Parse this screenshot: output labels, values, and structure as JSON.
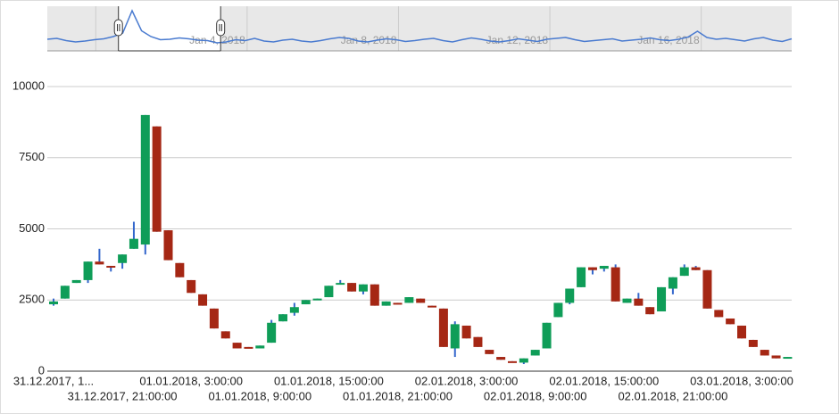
{
  "chart_data": {
    "type": "candlestick",
    "categories": [
      "31.12.2017, 1...",
      null,
      null,
      null,
      null,
      null,
      "31.12.2017, 21:00:00",
      null,
      null,
      null,
      null,
      null,
      "01.01.2018, 3:00:00",
      null,
      null,
      null,
      null,
      null,
      "01.01.2018, 9:00:00",
      null,
      null,
      null,
      null,
      null,
      "01.01.2018, 15:00:00",
      null,
      null,
      null,
      null,
      null,
      "01.01.2018, 21:00:00",
      null,
      null,
      null,
      null,
      null,
      "02.01.2018, 3:00:00",
      null,
      null,
      null,
      null,
      null,
      "02.01.2018, 9:00:00",
      null,
      null,
      null,
      null,
      null,
      "02.01.2018, 15:00:00",
      null,
      null,
      null,
      null,
      null,
      "02.01.2018, 21:00:00",
      null,
      null,
      null,
      null,
      null,
      "03.01.2018, 3:00:00",
      null,
      null,
      null,
      null
    ],
    "open": [
      2350,
      2550,
      3100,
      3200,
      3850,
      3700,
      3800,
      4300,
      4450,
      8600,
      4950,
      3800,
      3200,
      2700,
      2200,
      1400,
      1000,
      850,
      800,
      1000,
      1750,
      2050,
      2350,
      2500,
      2600,
      3050,
      3100,
      2800,
      3050,
      2300,
      2400,
      2400,
      2550,
      2300,
      2200,
      800,
      1600,
      1200,
      750,
      500,
      350,
      300,
      550,
      800,
      1900,
      2400,
      2950,
      3650,
      3600,
      3650,
      2400,
      2550,
      2250,
      2100,
      2900,
      3350,
      3650,
      3550,
      2150,
      1850,
      1600,
      1100,
      750,
      550,
      450
    ],
    "high": [
      2550,
      3000,
      3200,
      3850,
      4300,
      3700,
      4100,
      5250,
      9000,
      8600,
      4950,
      3800,
      3200,
      2700,
      2200,
      1400,
      1000,
      850,
      900,
      1800,
      2000,
      2400,
      2500,
      2550,
      3000,
      3200,
      3100,
      3050,
      3050,
      2450,
      2400,
      2600,
      2550,
      2300,
      2200,
      1750,
      1600,
      1200,
      750,
      500,
      350,
      450,
      750,
      1700,
      2400,
      2900,
      3650,
      3650,
      3700,
      3750,
      2550,
      2750,
      2250,
      2950,
      3300,
      3750,
      3700,
      3550,
      2150,
      1850,
      1600,
      1100,
      750,
      550,
      500
    ],
    "low": [
      2300,
      2550,
      3100,
      3100,
      3750,
      3500,
      3600,
      4300,
      4100,
      4900,
      3900,
      3300,
      2750,
      2300,
      1500,
      1150,
      800,
      800,
      800,
      1000,
      1750,
      1950,
      2350,
      2500,
      2600,
      3050,
      2800,
      2700,
      2300,
      2300,
      2350,
      2400,
      2400,
      2250,
      850,
      500,
      1150,
      850,
      600,
      400,
      300,
      250,
      550,
      800,
      1900,
      2350,
      2950,
      3400,
      3500,
      2450,
      2400,
      2300,
      2000,
      2100,
      2700,
      3350,
      3550,
      2200,
      1900,
      1650,
      1150,
      850,
      550,
      450,
      450
    ],
    "close": [
      2450,
      3000,
      3200,
      3850,
      3750,
      3650,
      4100,
      4650,
      9000,
      4900,
      3900,
      3300,
      2750,
      2300,
      1500,
      1150,
      800,
      800,
      900,
      1700,
      2000,
      2250,
      2500,
      2550,
      3000,
      3100,
      2800,
      3050,
      2300,
      2450,
      2350,
      2600,
      2400,
      2250,
      850,
      1650,
      1150,
      850,
      600,
      400,
      300,
      450,
      750,
      1700,
      2400,
      2900,
      3650,
      3550,
      3700,
      2450,
      2550,
      2300,
      2000,
      2950,
      3300,
      3650,
      3550,
      2200,
      1900,
      1650,
      1150,
      850,
      550,
      450,
      500
    ],
    "rising_color": "#0f9d58",
    "falling_color": "#a52714",
    "wick_color": "#3366cc",
    "ylim": [
      0,
      10000
    ],
    "yticks": [
      0,
      2500,
      5000,
      7500,
      10000
    ],
    "grid": true,
    "navigator": {
      "values": [
        2600,
        2800,
        2300,
        2000,
        2200,
        2500,
        2700,
        3200,
        4000,
        9000,
        4500,
        3200,
        2500,
        2600,
        2900,
        2700,
        2400,
        2300,
        1800,
        2000,
        2500,
        2300,
        2800,
        2200,
        2000,
        2400,
        2600,
        2200,
        2000,
        2300,
        2700,
        3000,
        2800,
        2200,
        2000,
        2400,
        2700,
        2500,
        2100,
        2300,
        2600,
        2800,
        2300,
        2000,
        2500,
        2900,
        2600,
        2200,
        2000,
        2300,
        2700,
        2400,
        2100,
        2600,
        2800,
        3000,
        2500,
        2100,
        2300,
        2500,
        2700,
        2200,
        2400,
        2600,
        2900,
        2500,
        2300,
        2600,
        3100,
        4400,
        3000,
        2600,
        2800,
        2500,
        2200,
        2700,
        3000,
        2400,
        2100,
        2700
      ],
      "color": "#4a7bd0",
      "xlim": [
        -1.28,
        18.39
      ],
      "ylim": [
        0,
        10000
      ],
      "xticks": [
        0,
        {
          "value": 4,
          "label": "Jan 4, 2018"
        },
        {
          "value": 8,
          "label": "Jan 8, 2018"
        },
        {
          "value": 12,
          "label": "Jan 12, 2018"
        },
        {
          "value": 16,
          "label": "Jan 16, 2018"
        }
      ],
      "selection": [
        0.6,
        3.3
      ]
    }
  }
}
